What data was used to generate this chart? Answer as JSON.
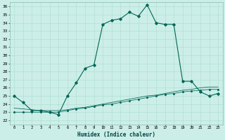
{
  "title": "",
  "xlabel": "Humidex (Indice chaleur)",
  "background_color": "#cceee8",
  "grid_color": "#aaddcc",
  "line_color": "#006655",
  "xlim": [
    -0.5,
    23.5
  ],
  "ylim": [
    21.5,
    36.5
  ],
  "xticks": [
    0,
    1,
    2,
    3,
    4,
    5,
    6,
    7,
    8,
    9,
    10,
    11,
    12,
    13,
    14,
    15,
    16,
    17,
    18,
    19,
    20,
    21,
    22,
    23
  ],
  "yticks": [
    22,
    23,
    24,
    25,
    26,
    27,
    28,
    29,
    30,
    31,
    32,
    33,
    34,
    35,
    36
  ],
  "series1_x": [
    0,
    1,
    2,
    3,
    4,
    5,
    6,
    7,
    8,
    9,
    10,
    11,
    12,
    13,
    14,
    15,
    16,
    17,
    18,
    19,
    20,
    21,
    22,
    23
  ],
  "series1_y": [
    25.0,
    24.2,
    23.2,
    23.2,
    23.0,
    22.7,
    25.0,
    26.6,
    28.4,
    28.8,
    33.8,
    34.3,
    34.5,
    35.3,
    34.8,
    36.2,
    34.0,
    33.8,
    33.8,
    26.8,
    26.8,
    25.5,
    25.0,
    25.3
  ],
  "series2_x": [
    0,
    1,
    2,
    3,
    4,
    5,
    6,
    7,
    8,
    9,
    10,
    11,
    12,
    13,
    14,
    15,
    16,
    17,
    18,
    19,
    20,
    21,
    22,
    23
  ],
  "series2_y": [
    23.0,
    23.0,
    23.0,
    23.0,
    23.0,
    23.0,
    23.2,
    23.4,
    23.5,
    23.7,
    23.9,
    24.0,
    24.2,
    24.4,
    24.6,
    24.8,
    25.0,
    25.2,
    25.3,
    25.5,
    25.6,
    25.7,
    25.8,
    25.8
  ],
  "series3_x": [
    0,
    1,
    2,
    3,
    4,
    5,
    6,
    7,
    8,
    9,
    10,
    11,
    12,
    13,
    14,
    15,
    16,
    17,
    18,
    19,
    20,
    21,
    22,
    23
  ],
  "series3_y": [
    23.5,
    23.4,
    23.3,
    23.2,
    23.2,
    23.2,
    23.3,
    23.5,
    23.6,
    23.8,
    24.0,
    24.2,
    24.4,
    24.6,
    24.8,
    25.0,
    25.1,
    25.3,
    25.5,
    25.7,
    25.8,
    26.0,
    26.1,
    26.1
  ]
}
